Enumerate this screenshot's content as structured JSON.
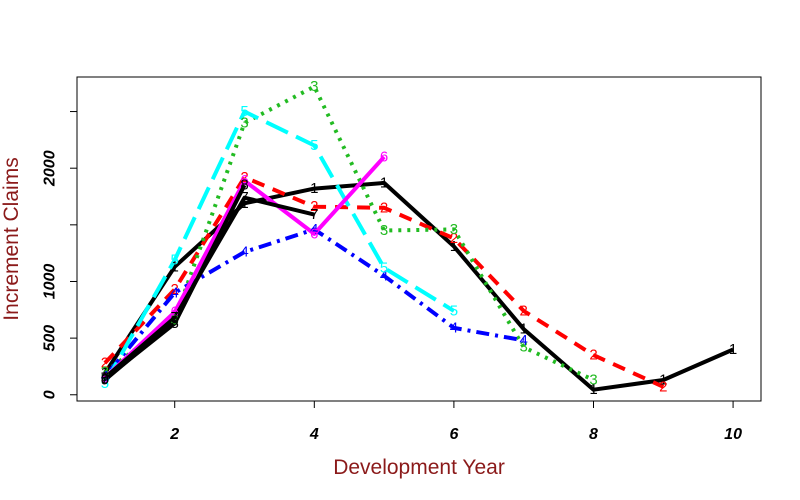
{
  "chart_data": {
    "type": "line",
    "xlabel": "Development Year",
    "ylabel": "Increment Claims",
    "xlim": [
      0.6,
      10.4
    ],
    "ylim": [
      -55,
      2805
    ],
    "x_ticks": [
      2,
      4,
      6,
      8,
      10
    ],
    "y_ticks": [
      0,
      500,
      1000,
      2000
    ],
    "y_unlabeled_ticks": [
      1500,
      2500
    ],
    "grid": false,
    "legend": "none",
    "series": [
      {
        "label": "1",
        "color": "#000000",
        "dash": "solid",
        "x": [
          1,
          2,
          3,
          4,
          5,
          6,
          7,
          8,
          9,
          10
        ],
        "y": [
          190,
          1130,
          1690,
          1820,
          1870,
          1310,
          580,
          45,
          130,
          400
        ]
      },
      {
        "label": "2",
        "color": "#ff0000",
        "dash": "dashed",
        "x": [
          1,
          2,
          3,
          4,
          5,
          6,
          7,
          8,
          9
        ],
        "y": [
          280,
          930,
          1920,
          1660,
          1650,
          1380,
          740,
          350,
          70
        ]
      },
      {
        "label": "3",
        "color": "#22bb22",
        "dash": "dotted",
        "x": [
          1,
          2,
          3,
          4,
          5,
          6,
          7,
          8
        ],
        "y": [
          200,
          660,
          2400,
          2720,
          1450,
          1460,
          420,
          130
        ]
      },
      {
        "label": "4",
        "color": "#0000ff",
        "dash": "dotdash",
        "x": [
          1,
          2,
          3,
          4,
          5,
          6,
          7
        ],
        "y": [
          160,
          900,
          1260,
          1460,
          1050,
          590,
          480
        ]
      },
      {
        "label": "5",
        "color": "#00ffff",
        "dash": "longdash",
        "x": [
          1,
          2,
          3,
          4,
          5,
          6
        ],
        "y": [
          100,
          1190,
          2500,
          2200,
          1120,
          740
        ]
      },
      {
        "label": "6",
        "color": "#ff00ff",
        "dash": "solid",
        "x": [
          1,
          2,
          3,
          4,
          5
        ],
        "y": [
          150,
          730,
          1890,
          1420,
          2100
        ]
      },
      {
        "label": "7",
        "color": "#000000",
        "dash": "solid",
        "x": [
          1,
          2,
          3,
          4
        ],
        "y": [
          150,
          680,
          1740,
          1590
        ]
      },
      {
        "label": "8",
        "color": "#000000",
        "dash": "solid",
        "x": [
          1,
          2,
          3
        ],
        "y": [
          140,
          630,
          1850
        ]
      },
      {
        "label": "9",
        "color": "#000000",
        "dash": "solid",
        "x": [
          1,
          2
        ],
        "y": [
          130,
          650
        ]
      }
    ]
  }
}
